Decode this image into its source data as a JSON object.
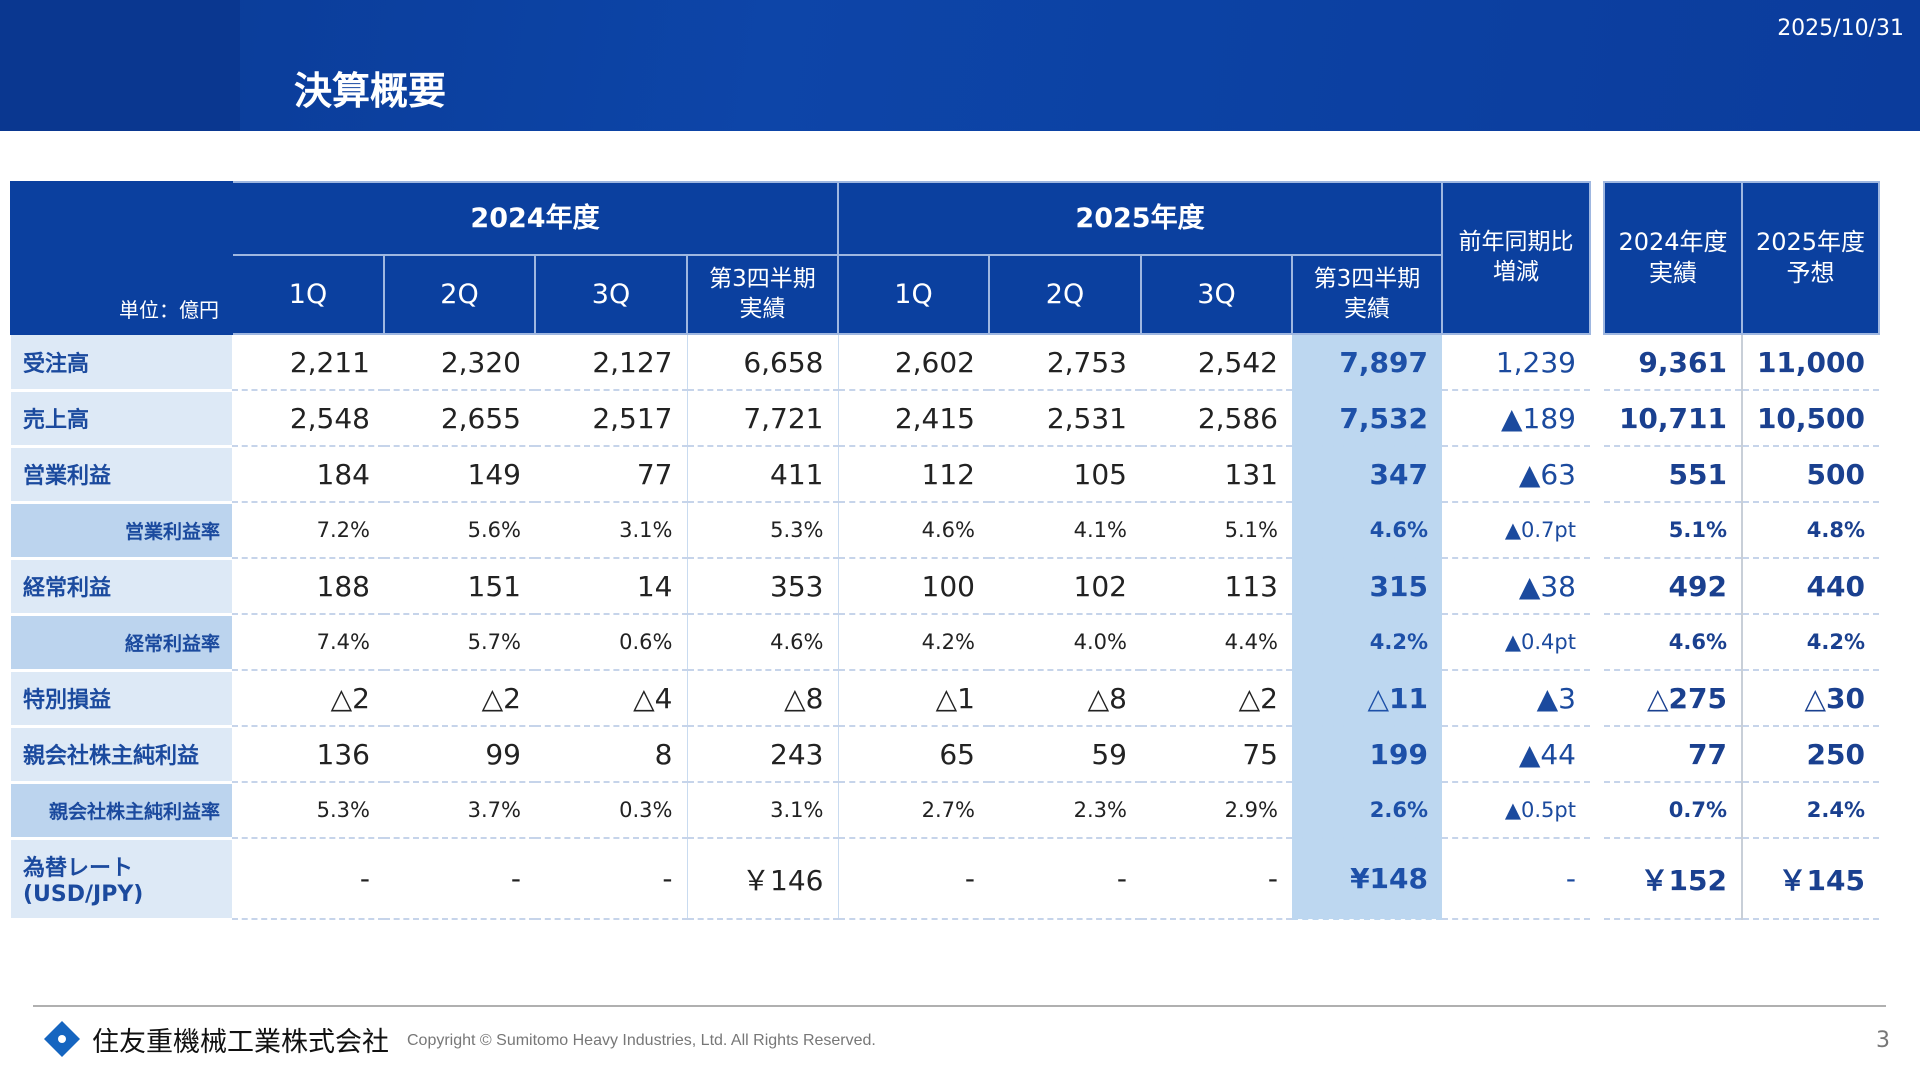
{
  "header": {
    "title": "決算概要",
    "date": "2025/10/31"
  },
  "table": {
    "unit": "単位：億円",
    "fy2024": "2024年度",
    "fy2025": "2025年度",
    "quarters": [
      "1Q",
      "2Q",
      "3Q"
    ],
    "cum": "第3四半期\n実績",
    "yoy": "前年同期比\n増減",
    "fy2024_actual": "2024年度\n実績",
    "fy2025_forecast": "2025年度\n予想",
    "rows": [
      {
        "label": "受注高",
        "type": "normal",
        "v2024": [
          "2,211",
          "2,320",
          "2,127",
          "6,658"
        ],
        "v2025": [
          "2,602",
          "2,753",
          "2,542"
        ],
        "cum2025": "7,897",
        "yoy": "1,239",
        "fy2024": "9,361",
        "fy2025": "11,000"
      },
      {
        "label": "売上高",
        "type": "normal",
        "v2024": [
          "2,548",
          "2,655",
          "2,517",
          "7,721"
        ],
        "v2025": [
          "2,415",
          "2,531",
          "2,586"
        ],
        "cum2025": "7,532",
        "yoy": "▲189",
        "fy2024": "10,711",
        "fy2025": "10,500"
      },
      {
        "label": "営業利益",
        "type": "normal",
        "v2024": [
          "184",
          "149",
          "77",
          "411"
        ],
        "v2025": [
          "112",
          "105",
          "131"
        ],
        "cum2025": "347",
        "yoy": "▲63",
        "fy2024": "551",
        "fy2025": "500"
      },
      {
        "label": "営業利益率",
        "type": "ratio",
        "v2024": [
          "7.2%",
          "5.6%",
          "3.1%",
          "5.3%"
        ],
        "v2025": [
          "4.6%",
          "4.1%",
          "5.1%"
        ],
        "cum2025": "4.6%",
        "yoy": "▲0.7pt",
        "fy2024": "5.1%",
        "fy2025": "4.8%"
      },
      {
        "label": "経常利益",
        "type": "normal",
        "v2024": [
          "188",
          "151",
          "14",
          "353"
        ],
        "v2025": [
          "100",
          "102",
          "113"
        ],
        "cum2025": "315",
        "yoy": "▲38",
        "fy2024": "492",
        "fy2025": "440"
      },
      {
        "label": "経常利益率",
        "type": "ratio",
        "v2024": [
          "7.4%",
          "5.7%",
          "0.6%",
          "4.6%"
        ],
        "v2025": [
          "4.2%",
          "4.0%",
          "4.4%"
        ],
        "cum2025": "4.2%",
        "yoy": "▲0.4pt",
        "fy2024": "4.6%",
        "fy2025": "4.2%"
      },
      {
        "label": "特別損益",
        "type": "normal",
        "v2024": [
          "△2",
          "△2",
          "△4",
          "△8"
        ],
        "v2025": [
          "△1",
          "△8",
          "△2"
        ],
        "cum2025": "△11",
        "yoy": "▲3",
        "fy2024": "△275",
        "fy2025": "△30"
      },
      {
        "label": "親会社株主純利益",
        "type": "normal",
        "v2024": [
          "136",
          "99",
          "8",
          "243"
        ],
        "v2025": [
          "65",
          "59",
          "75"
        ],
        "cum2025": "199",
        "yoy": "▲44",
        "fy2024": "77",
        "fy2025": "250"
      },
      {
        "label": "親会社株主純利益率",
        "type": "ratio",
        "v2024": [
          "5.3%",
          "3.7%",
          "0.3%",
          "3.1%"
        ],
        "v2025": [
          "2.7%",
          "2.3%",
          "2.9%"
        ],
        "cum2025": "2.6%",
        "yoy": "▲0.5pt",
        "fy2024": "0.7%",
        "fy2025": "2.4%"
      },
      {
        "label": "為替レート\n(USD/JPY)",
        "type": "last",
        "v2024": [
          "-",
          "-",
          "-",
          "￥146"
        ],
        "v2025": [
          "-",
          "-",
          "-"
        ],
        "cum2025": "¥148",
        "yoy": "-",
        "fy2024": "￥152",
        "fy2025": "￥145"
      }
    ]
  },
  "footer": {
    "company": "住友重機械工業株式会社",
    "copyright": "Copyright © Sumitomo Heavy Industries, Ltd. All Rights Reserved.",
    "page": "3"
  },
  "colors": {
    "header_blue": "#0b409f",
    "label_bg": "#dde9f6",
    "highlight_bg": "#bdd7f0",
    "text_blue": "#1b4a9e"
  }
}
